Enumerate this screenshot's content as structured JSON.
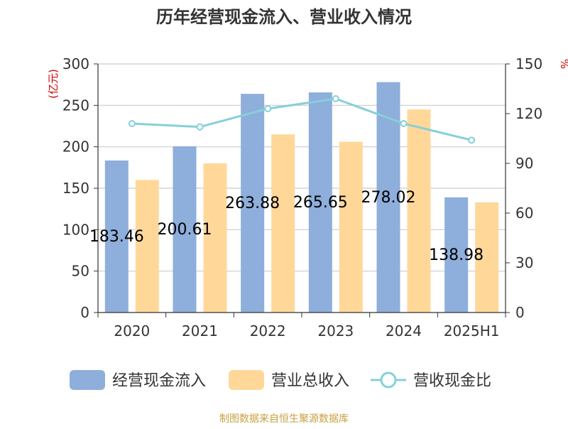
{
  "chart_data": {
    "type": "bar",
    "title": "历年经营现金流入、营业收入情况",
    "left_unit": "(亿元)",
    "right_unit": "%",
    "categories": [
      "2020",
      "2021",
      "2022",
      "2023",
      "2024",
      "2025H1"
    ],
    "series": [
      {
        "name": "经营现金流入",
        "kind": "bar",
        "axis": "left",
        "color": "#8eaedb",
        "values": [
          183.46,
          200.61,
          263.88,
          265.65,
          278.02,
          138.98
        ],
        "labels": [
          "183.46",
          "200.61",
          "263.88",
          "265.65",
          "278.02",
          "138.98"
        ]
      },
      {
        "name": "营业总收入",
        "kind": "bar",
        "axis": "left",
        "color": "#ffd899",
        "values": [
          160,
          180,
          215,
          206,
          245,
          133
        ]
      },
      {
        "name": "营收现金比",
        "kind": "line",
        "axis": "right",
        "color": "#86d0d8",
        "values": [
          114,
          112,
          123,
          129,
          114,
          104
        ]
      }
    ],
    "left_axis": {
      "min": 0,
      "max": 300,
      "ticks": [
        "0",
        "50",
        "100",
        "150",
        "200",
        "250",
        "300"
      ]
    },
    "right_axis": {
      "min": 0,
      "max": 150,
      "ticks": [
        "0",
        "30",
        "60",
        "90",
        "120",
        "150"
      ]
    },
    "grid": true,
    "legend_position": "bottom"
  },
  "source": "制图数据来自恒生聚源数据库",
  "colors": {
    "title": "#333333",
    "axis": "#333333",
    "grid": "#cccccc",
    "unit": "#d00000",
    "source": "#c8a040"
  }
}
